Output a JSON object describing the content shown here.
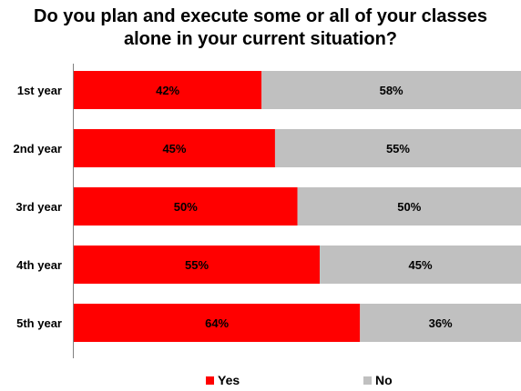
{
  "chart_data": {
    "type": "bar",
    "orientation": "horizontal",
    "stacked": true,
    "percent": true,
    "title_lines": [
      "Do you plan and execute some or all of your classes",
      "alone in your current situation?"
    ],
    "categories": [
      "1st year",
      "2nd year",
      "3rd year",
      "4th year",
      "5th year"
    ],
    "series": [
      {
        "name": "Yes",
        "color": "#ff0000",
        "values": [
          42,
          45,
          50,
          55,
          64
        ],
        "labels": [
          "42%",
          "45%",
          "50%",
          "55%",
          "64%"
        ]
      },
      {
        "name": "No",
        "color": "#c0c0c0",
        "values": [
          58,
          55,
          50,
          45,
          36
        ],
        "labels": [
          "58%",
          "55%",
          "50%",
          "45%",
          "36%"
        ]
      }
    ],
    "xlim": [
      0,
      100
    ],
    "grid": false,
    "legend_position": "bottom"
  }
}
